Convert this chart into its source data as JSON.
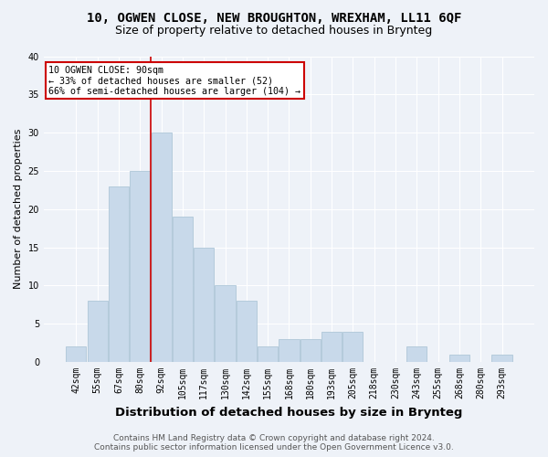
{
  "title1": "10, OGWEN CLOSE, NEW BROUGHTON, WREXHAM, LL11 6QF",
  "title2": "Size of property relative to detached houses in Brynteg",
  "xlabel": "Distribution of detached houses by size in Brynteg",
  "ylabel": "Number of detached properties",
  "categories": [
    "42sqm",
    "55sqm",
    "67sqm",
    "80sqm",
    "92sqm",
    "105sqm",
    "117sqm",
    "130sqm",
    "142sqm",
    "155sqm",
    "168sqm",
    "180sqm",
    "193sqm",
    "205sqm",
    "218sqm",
    "230sqm",
    "243sqm",
    "255sqm",
    "268sqm",
    "280sqm",
    "293sqm"
  ],
  "values": [
    2,
    8,
    23,
    25,
    30,
    19,
    15,
    10,
    8,
    2,
    3,
    3,
    4,
    4,
    0,
    0,
    2,
    0,
    1,
    0,
    1
  ],
  "bar_color": "#c8d9ea",
  "bar_edge_color": "#aec6d8",
  "vline_color": "#cc0000",
  "vline_x_index": 3.5,
  "annotation_line1": "10 OGWEN CLOSE: 90sqm",
  "annotation_line2": "← 33% of detached houses are smaller (52)",
  "annotation_line3": "66% of semi-detached houses are larger (104) →",
  "annotation_box_facecolor": "#ffffff",
  "annotation_box_edgecolor": "#cc0000",
  "ylim": [
    0,
    40
  ],
  "yticks": [
    0,
    5,
    10,
    15,
    20,
    25,
    30,
    35,
    40
  ],
  "bg_color": "#eef2f8",
  "grid_color": "#ffffff",
  "title1_fontsize": 10,
  "title2_fontsize": 9,
  "xlabel_fontsize": 9.5,
  "ylabel_fontsize": 8,
  "tick_fontsize": 7,
  "footnote_fontsize": 6.5,
  "footnote1": "Contains HM Land Registry data © Crown copyright and database right 2024.",
  "footnote2": "Contains public sector information licensed under the Open Government Licence v3.0."
}
